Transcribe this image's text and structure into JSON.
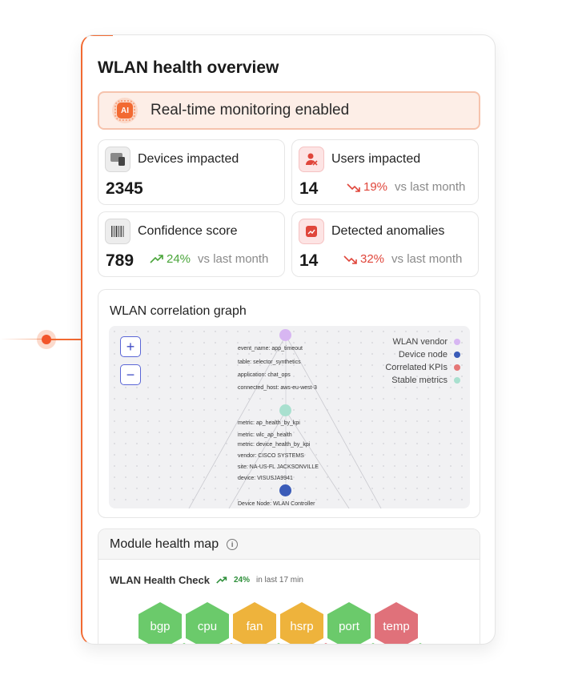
{
  "title": "WLAN health overview",
  "banner": {
    "badge": "AI",
    "text": "Real-time monitoring enabled"
  },
  "stats": [
    {
      "label": "Devices impacted",
      "value": "2345",
      "icon": "devices-icon"
    },
    {
      "label": "Users impacted",
      "value": "14",
      "delta": "19%",
      "trend": "down",
      "compare": "vs last month",
      "icon": "users-icon"
    },
    {
      "label": "Confidence score",
      "value": "789",
      "delta": "24%",
      "trend": "up",
      "compare": "vs last month",
      "icon": "barcode-icon"
    },
    {
      "label": "Detected anomalies",
      "value": "14",
      "delta": "32%",
      "trend": "down",
      "compare": "vs last month",
      "icon": "anomaly-chart-icon"
    }
  ],
  "graph": {
    "title": "WLAN correlation graph",
    "zoom_in": "+",
    "zoom_out": "−",
    "legend": [
      {
        "label": "WLAN vendor",
        "color": "#d7b6f2"
      },
      {
        "label": "Device node",
        "color": "#3a5bb8"
      },
      {
        "label": "Correlated KPIs",
        "color": "#e57777"
      },
      {
        "label": "Stable metrics",
        "color": "#a9e0cf"
      }
    ],
    "node1_labels": [
      "event_name: app_timeout",
      "table: selector_synthetics",
      "application: chat_ops",
      "connected_host: aws-eu-west-3"
    ],
    "node2_labels": [
      "metric: ap_health_by_kpi",
      "metric: wlc_ap_health",
      "metric: device_health_by_kpi",
      "vendor: CISCO SYSTEMS",
      "site: NA-US-FL JACKSONVILLE",
      "device: VISUSJA9941"
    ],
    "node3_label": "Device Node: WLAN Controller"
  },
  "module": {
    "title": "Module health map",
    "check_title": "WLAN Health Check",
    "check_delta": "24%",
    "check_sub": "in last 17 min",
    "hexes": [
      {
        "label": "bgp",
        "status": "green"
      },
      {
        "label": "cpu",
        "status": "green"
      },
      {
        "label": "fan",
        "status": "yellow"
      },
      {
        "label": "hsrp",
        "status": "yellow"
      },
      {
        "label": "port",
        "status": "green"
      },
      {
        "label": "temp",
        "status": "red"
      }
    ]
  },
  "colors": {
    "accent": "#f26a32",
    "down": "#e0463b",
    "up": "#4aa53a"
  }
}
